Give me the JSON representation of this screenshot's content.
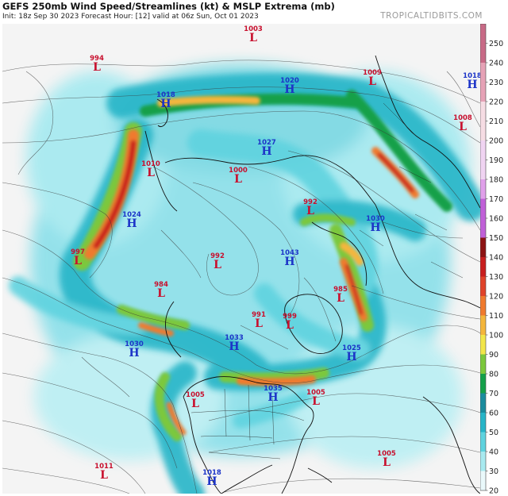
{
  "header": {
    "title": "GEFS 250mb Wind Speed/Streamlines (kt) & MSLP Extrema (mb)",
    "subtitle": "Init: 18z Sep 30 2023   Forecast Hour: [12]   valid at 06z Sun, Oct 01 2023",
    "brand": "TROPICALTIDBITS.COM"
  },
  "colors": {
    "high": "#1d35c8",
    "low": "#c8102e",
    "ocean": "#f4f4f4",
    "coast": "#111111"
  },
  "colorbar": {
    "min": 20,
    "max": 260,
    "labels": [
      "250",
      "240",
      "230",
      "220",
      "210",
      "200",
      "190",
      "180",
      "170",
      "160",
      "150",
      "140",
      "130",
      "120",
      "110",
      "100",
      "90",
      "80",
      "70",
      "60",
      "50",
      "40",
      "30",
      "20"
    ],
    "stops": [
      {
        "v": 20,
        "c": "#eaf9fb"
      },
      {
        "v": 30,
        "c": "#a8eaf0"
      },
      {
        "v": 40,
        "c": "#5fd3df"
      },
      {
        "v": 50,
        "c": "#27b5c8"
      },
      {
        "v": 60,
        "c": "#1a8c9e"
      },
      {
        "v": 70,
        "c": "#14a04a"
      },
      {
        "v": 80,
        "c": "#7cc83c"
      },
      {
        "v": 90,
        "c": "#f2e64a"
      },
      {
        "v": 100,
        "c": "#f4b63c"
      },
      {
        "v": 110,
        "c": "#f07a2e"
      },
      {
        "v": 120,
        "c": "#e0432a"
      },
      {
        "v": 130,
        "c": "#c81e1e"
      },
      {
        "v": 140,
        "c": "#8c1212"
      },
      {
        "v": 150,
        "c": "#c060d8"
      },
      {
        "v": 170,
        "c": "#e0a0ea"
      },
      {
        "v": 180,
        "c": "#f0d4f2"
      },
      {
        "v": 200,
        "c": "#f6dde4"
      },
      {
        "v": 220,
        "c": "#e6a2b6"
      },
      {
        "v": 240,
        "c": "#c86a86"
      },
      {
        "v": 260,
        "c": "#a2405e"
      }
    ]
  },
  "extrema": [
    {
      "type": "L",
      "value": "994"
    },
    {
      "type": "L",
      "value": "1003"
    },
    {
      "type": "H",
      "value": "1020"
    },
    {
      "type": "L",
      "value": "1009"
    },
    {
      "type": "H",
      "value": "1018"
    },
    {
      "type": "L",
      "value": "1008"
    },
    {
      "type": "H",
      "value": "1018"
    },
    {
      "type": "L",
      "value": "1010"
    },
    {
      "type": "H",
      "value": "1027"
    },
    {
      "type": "L",
      "value": "1000"
    },
    {
      "type": "L",
      "value": "992"
    },
    {
      "type": "H",
      "value": "1024"
    },
    {
      "type": "L",
      "value": "992"
    },
    {
      "type": "H",
      "value": "1043"
    },
    {
      "type": "L",
      "value": "984"
    },
    {
      "type": "L",
      "value": "985"
    },
    {
      "type": "L",
      "value": "991"
    },
    {
      "type": "L",
      "value": "999"
    },
    {
      "type": "H",
      "value": "1030"
    },
    {
      "type": "H",
      "value": "1033"
    },
    {
      "type": "H",
      "value": "1025"
    },
    {
      "type": "L",
      "value": "1005"
    },
    {
      "type": "H",
      "value": "1035"
    },
    {
      "type": "L",
      "value": "1005"
    },
    {
      "type": "L",
      "value": "1005"
    },
    {
      "type": "L",
      "value": "1011"
    },
    {
      "type": "H",
      "value": "1018"
    },
    {
      "type": "H",
      "value": "1030"
    },
    {
      "type": "L",
      "value": "997"
    }
  ]
}
